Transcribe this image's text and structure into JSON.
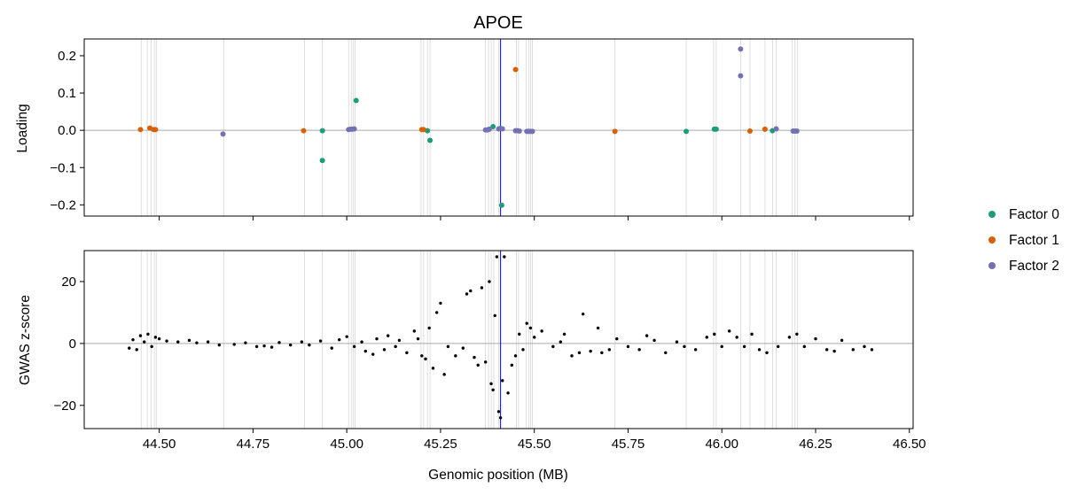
{
  "chart_data": [
    {
      "type": "scatter",
      "title": "APOE",
      "xlabel": "",
      "ylabel": "Loading",
      "xlim": [
        44.3,
        46.51
      ],
      "ylim": [
        -0.23,
        0.245
      ],
      "x_ticks": [
        44.5,
        44.75,
        45.0,
        45.25,
        45.5,
        45.75,
        46.0,
        46.25,
        46.5
      ],
      "x_tick_labels_visible": false,
      "y_ticks": [
        0.2,
        0.1,
        0.0,
        -0.1,
        -0.2
      ],
      "y_tick_labels": [
        "0.2",
        "0.1",
        "0.0",
        "−0.1",
        "−0.2"
      ],
      "horizontal_line_y": 0,
      "series": [
        {
          "name": "Factor 0",
          "color": "#1b9e77",
          "points": [
            [
              44.935,
              -0.001
            ],
            [
              44.935,
              -0.081
            ],
            [
              45.025,
              0.08
            ],
            [
              45.215,
              -0.001
            ],
            [
              45.222,
              -0.027
            ],
            [
              45.39,
              0.01
            ],
            [
              45.41,
              0.005
            ],
            [
              45.413,
              -0.201
            ],
            [
              45.905,
              -0.003
            ],
            [
              45.98,
              0.003
            ],
            [
              45.985,
              0.003
            ],
            [
              46.135,
              -0.001
            ]
          ]
        },
        {
          "name": "Factor 1",
          "color": "#d95f02",
          "points": [
            [
              44.45,
              0.002
            ],
            [
              44.475,
              0.006
            ],
            [
              44.485,
              0.002
            ],
            [
              44.49,
              0.002
            ],
            [
              44.885,
              -0.001
            ],
            [
              45.2,
              0.002
            ],
            [
              45.205,
              0.002
            ],
            [
              45.45,
              0.163
            ],
            [
              45.715,
              -0.003
            ],
            [
              46.075,
              -0.002
            ],
            [
              46.115,
              0.003
            ]
          ]
        },
        {
          "name": "Factor 2",
          "color": "#7570b3",
          "points": [
            [
              44.67,
              -0.01
            ],
            [
              45.005,
              0.002
            ],
            [
              45.01,
              0.003
            ],
            [
              45.015,
              0.003
            ],
            [
              45.02,
              0.004
            ],
            [
              45.37,
              0.001
            ],
            [
              45.375,
              0.001
            ],
            [
              45.38,
              0.003
            ],
            [
              45.405,
              0.004
            ],
            [
              45.415,
              0.004
            ],
            [
              45.45,
              -0.001
            ],
            [
              45.455,
              -0.001
            ],
            [
              45.46,
              -0.002
            ],
            [
              45.48,
              -0.003
            ],
            [
              45.485,
              -0.003
            ],
            [
              45.49,
              -0.003
            ],
            [
              45.495,
              -0.003
            ],
            [
              46.05,
              0.218
            ],
            [
              46.05,
              0.146
            ],
            [
              46.145,
              0.004
            ],
            [
              46.19,
              -0.002
            ],
            [
              46.195,
              -0.002
            ],
            [
              46.2,
              -0.002
            ]
          ]
        }
      ],
      "vertical_highlight": {
        "x": 45.41,
        "color": "#0000ff"
      },
      "vertical_gridlines_x": [
        44.452,
        44.468,
        44.478,
        44.487,
        44.492,
        44.672,
        44.887,
        44.935,
        45.005,
        45.012,
        45.017,
        45.022,
        45.198,
        45.205,
        45.215,
        45.222,
        45.37,
        45.378,
        45.385,
        45.392,
        45.405,
        45.452,
        45.458,
        45.478,
        45.485,
        45.49,
        45.495,
        45.715,
        45.905,
        45.978,
        45.985,
        46.05,
        46.075,
        46.115,
        46.135,
        46.145,
        46.188,
        46.195,
        46.202
      ]
    },
    {
      "type": "scatter",
      "title": "",
      "xlabel": "Genomic position (MB)",
      "ylabel": "GWAS z-score",
      "xlim": [
        44.3,
        46.51
      ],
      "ylim": [
        -27.5,
        30
      ],
      "x_ticks": [
        44.5,
        44.75,
        45.0,
        45.25,
        45.5,
        45.75,
        46.0,
        46.25,
        46.5
      ],
      "x_tick_labels": [
        "44.50",
        "44.75",
        "45.00",
        "45.25",
        "45.50",
        "45.75",
        "46.00",
        "46.25",
        "46.50"
      ],
      "y_ticks": [
        20,
        0,
        -20
      ],
      "y_tick_labels": [
        "20",
        "0",
        "−20"
      ],
      "horizontal_line_y": 0,
      "series": [
        {
          "name": "",
          "color": "#000000",
          "points": [
            [
              44.42,
              -1.5
            ],
            [
              44.43,
              1.2
            ],
            [
              44.44,
              -2
            ],
            [
              44.45,
              2.5
            ],
            [
              44.46,
              0.5
            ],
            [
              44.47,
              3
            ],
            [
              44.48,
              -1
            ],
            [
              44.49,
              2
            ],
            [
              44.5,
              1.5
            ],
            [
              44.52,
              0.8
            ],
            [
              44.55,
              0.5
            ],
            [
              44.58,
              1
            ],
            [
              44.6,
              0.2
            ],
            [
              44.63,
              0.5
            ],
            [
              44.66,
              -0.5
            ],
            [
              44.7,
              -0.3
            ],
            [
              44.73,
              0.2
            ],
            [
              44.76,
              -1
            ],
            [
              44.78,
              -0.8
            ],
            [
              44.8,
              -1.2
            ],
            [
              44.82,
              0.3
            ],
            [
              44.85,
              -0.5
            ],
            [
              44.88,
              0.5
            ],
            [
              44.9,
              -0.5
            ],
            [
              44.93,
              0.8
            ],
            [
              44.96,
              -1.5
            ],
            [
              44.98,
              1.2
            ],
            [
              45.0,
              2.2
            ],
            [
              45.02,
              -1
            ],
            [
              45.04,
              0.5
            ],
            [
              45.05,
              -2.5
            ],
            [
              45.07,
              -3.5
            ],
            [
              45.08,
              1.5
            ],
            [
              45.1,
              -2
            ],
            [
              45.11,
              2.5
            ],
            [
              45.13,
              -1
            ],
            [
              45.14,
              1
            ],
            [
              45.16,
              -3
            ],
            [
              45.18,
              4
            ],
            [
              45.19,
              1.5
            ],
            [
              45.2,
              -4
            ],
            [
              45.21,
              -5
            ],
            [
              45.22,
              5
            ],
            [
              45.23,
              -8
            ],
            [
              45.24,
              10
            ],
            [
              45.25,
              13
            ],
            [
              45.26,
              -10
            ],
            [
              45.27,
              -1
            ],
            [
              45.29,
              -4
            ],
            [
              45.31,
              -1.5
            ],
            [
              45.32,
              16
            ],
            [
              45.33,
              17
            ],
            [
              45.34,
              -4.5
            ],
            [
              45.35,
              -7
            ],
            [
              45.36,
              18
            ],
            [
              45.37,
              -6
            ],
            [
              45.38,
              20
            ],
            [
              45.385,
              -13
            ],
            [
              45.39,
              -15
            ],
            [
              45.395,
              9
            ],
            [
              45.4,
              28
            ],
            [
              45.405,
              -22
            ],
            [
              45.41,
              -24
            ],
            [
              45.415,
              -12
            ],
            [
              45.42,
              28
            ],
            [
              45.43,
              -16
            ],
            [
              45.44,
              -7
            ],
            [
              45.45,
              -4
            ],
            [
              45.46,
              3
            ],
            [
              45.47,
              -2
            ],
            [
              45.48,
              6.5
            ],
            [
              45.49,
              5
            ],
            [
              45.5,
              2
            ],
            [
              45.52,
              4
            ],
            [
              45.55,
              -1
            ],
            [
              45.57,
              0.5
            ],
            [
              45.58,
              3
            ],
            [
              45.6,
              -4
            ],
            [
              45.62,
              -3
            ],
            [
              45.63,
              9.5
            ],
            [
              45.65,
              -2.5
            ],
            [
              45.67,
              5
            ],
            [
              45.68,
              -3
            ],
            [
              45.7,
              -2
            ],
            [
              45.72,
              1.5
            ],
            [
              45.75,
              -1
            ],
            [
              45.78,
              -2
            ],
            [
              45.8,
              2.5
            ],
            [
              45.82,
              1
            ],
            [
              45.85,
              -3
            ],
            [
              45.88,
              0.5
            ],
            [
              45.9,
              -1
            ],
            [
              45.93,
              -2
            ],
            [
              45.96,
              2
            ],
            [
              45.98,
              3
            ],
            [
              46.0,
              -1
            ],
            [
              46.02,
              4
            ],
            [
              46.04,
              2
            ],
            [
              46.06,
              -1
            ],
            [
              46.08,
              3
            ],
            [
              46.1,
              -2
            ],
            [
              46.12,
              -3
            ],
            [
              46.15,
              -1
            ],
            [
              46.18,
              2
            ],
            [
              46.2,
              3
            ],
            [
              46.22,
              -1
            ],
            [
              46.25,
              1.5
            ],
            [
              46.28,
              -2
            ],
            [
              46.3,
              -2.5
            ],
            [
              46.32,
              1
            ],
            [
              46.35,
              -2
            ],
            [
              46.38,
              -1
            ],
            [
              46.4,
              -2
            ]
          ]
        }
      ],
      "vertical_highlight": {
        "x": 45.41,
        "color": "#0000ff"
      },
      "vertical_gridlines_x": [
        44.452,
        44.468,
        44.478,
        44.487,
        44.492,
        44.672,
        44.887,
        44.935,
        45.005,
        45.012,
        45.017,
        45.022,
        45.198,
        45.205,
        45.215,
        45.222,
        45.37,
        45.378,
        45.385,
        45.392,
        45.405,
        45.452,
        45.458,
        45.478,
        45.485,
        45.49,
        45.495,
        45.715,
        45.905,
        45.978,
        45.985,
        46.05,
        46.075,
        46.115,
        46.135,
        46.145,
        46.188,
        46.195,
        46.202
      ]
    }
  ],
  "legend": {
    "placement": "right",
    "items": [
      {
        "label": "Factor 0",
        "color": "#1b9e77"
      },
      {
        "label": "Factor 1",
        "color": "#d95f02"
      },
      {
        "label": "Factor 2",
        "color": "#7570b3"
      }
    ]
  }
}
